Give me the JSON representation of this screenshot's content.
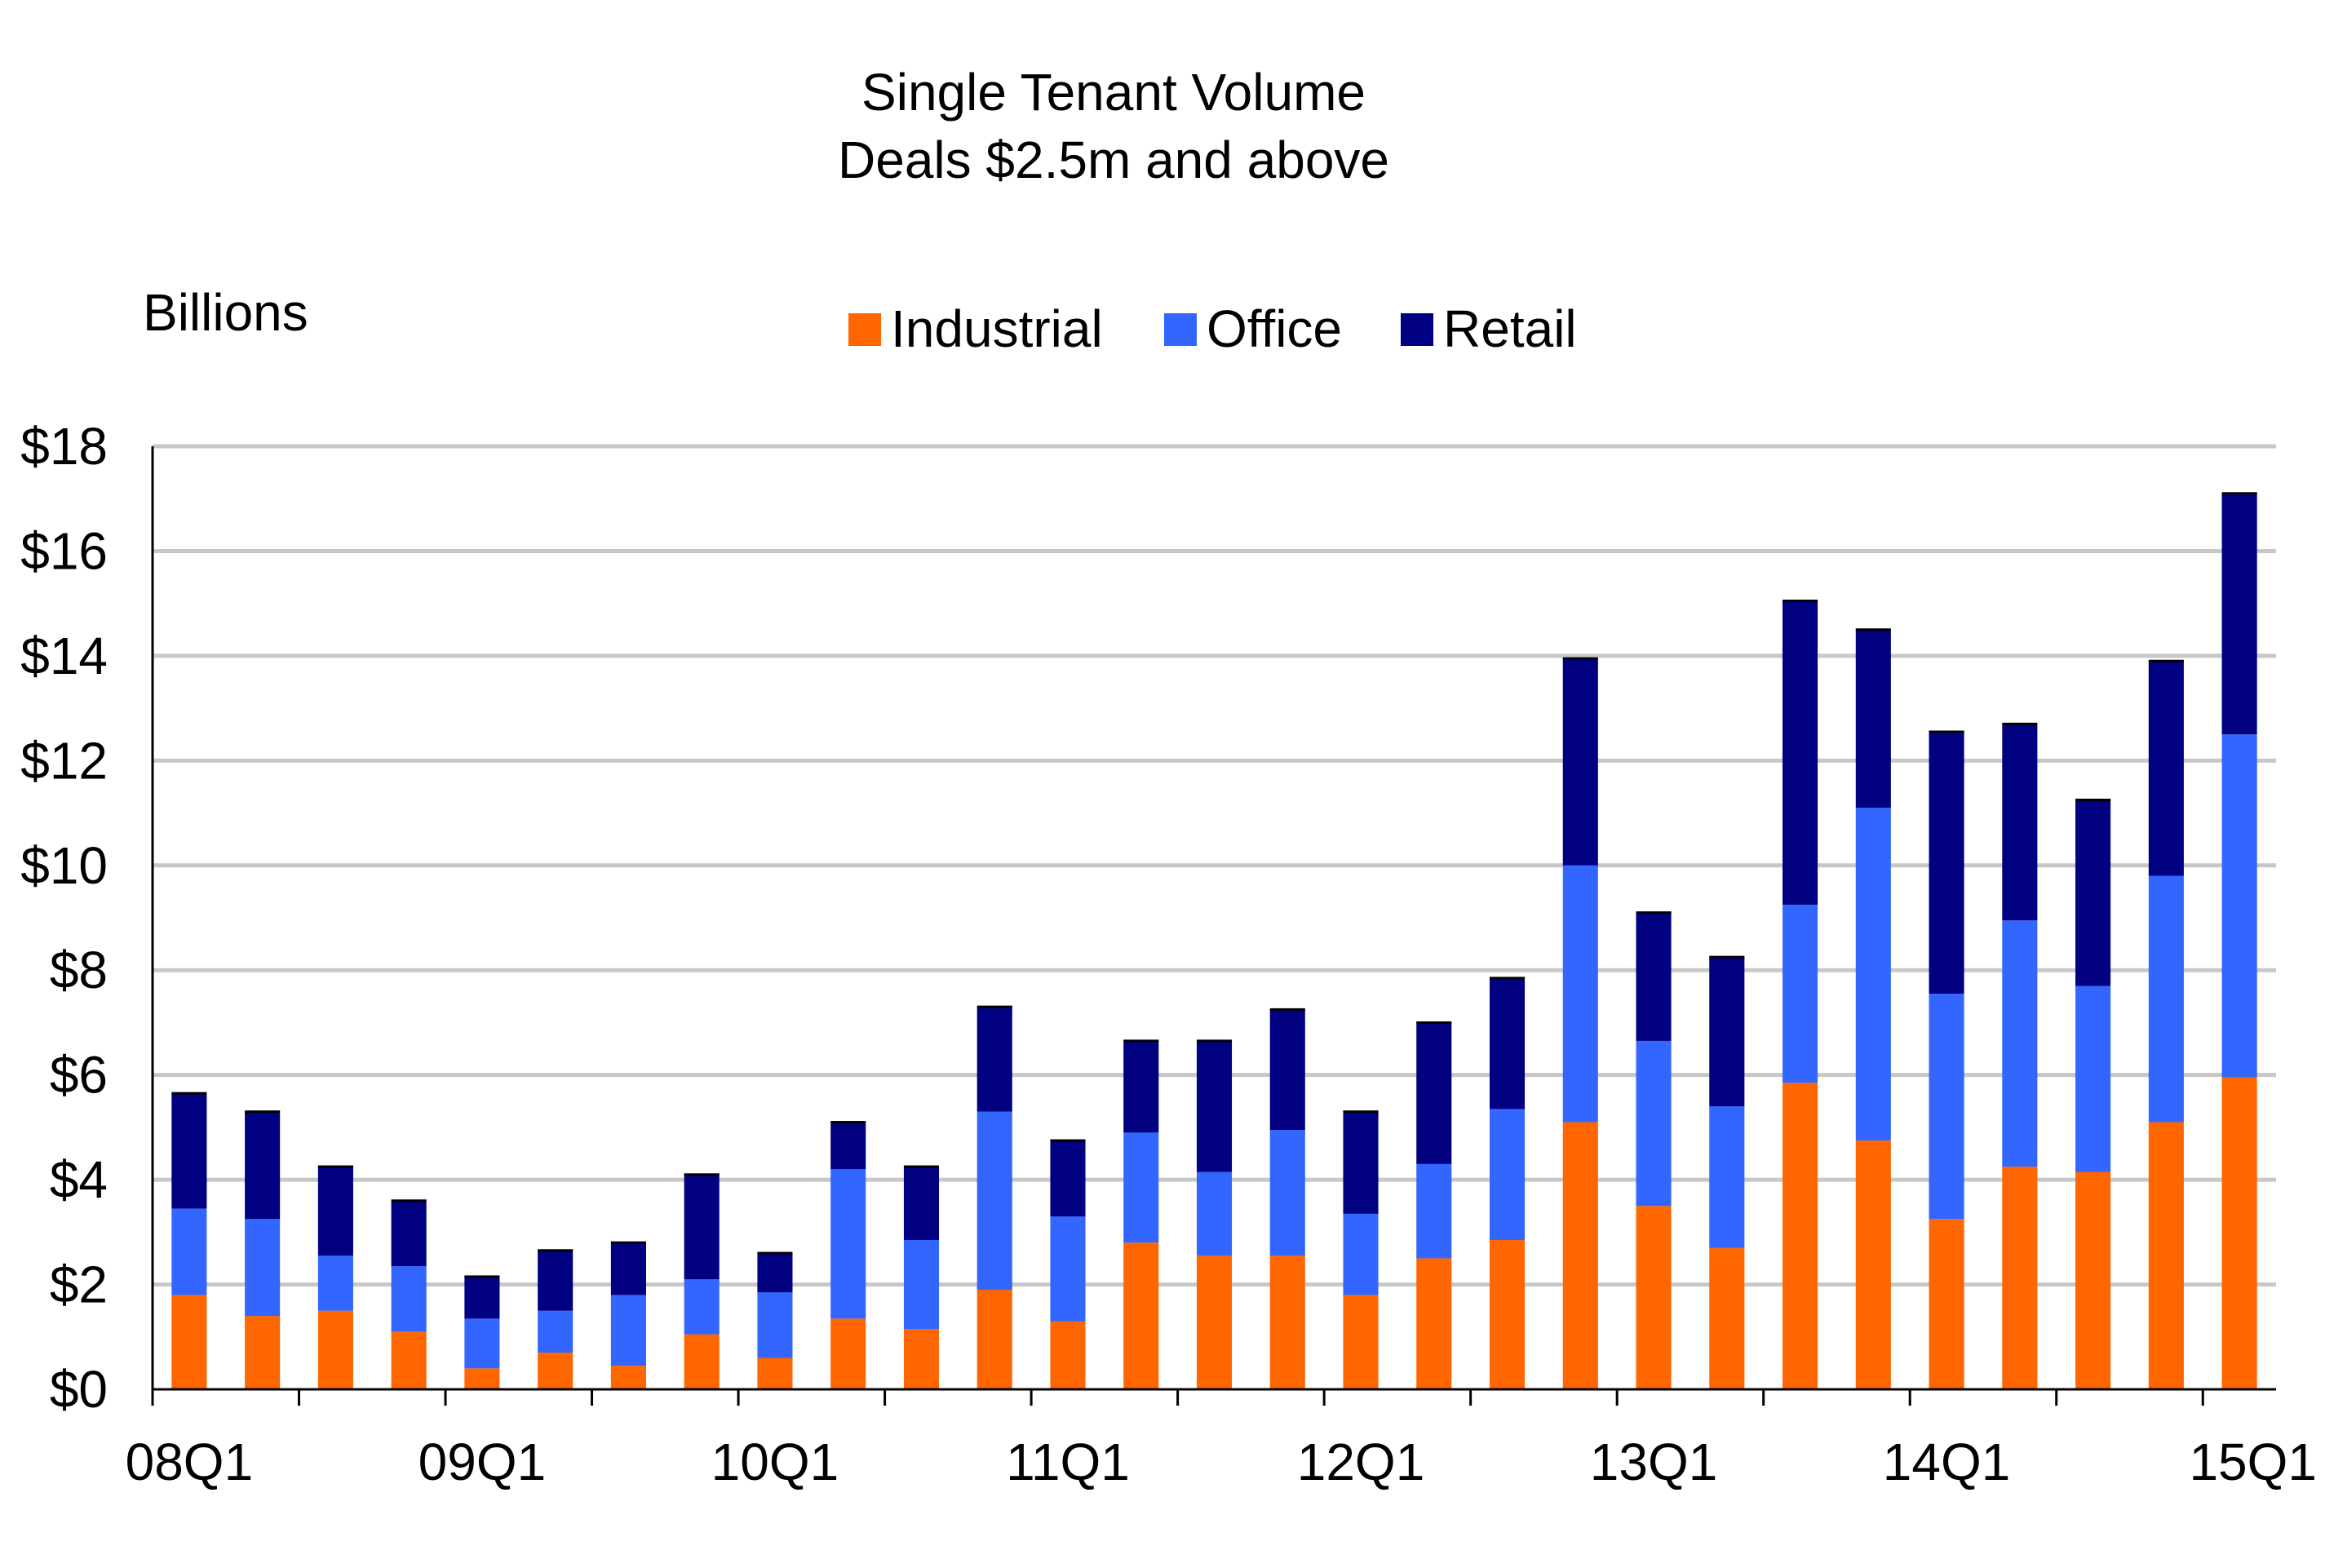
{
  "chart_data": {
    "type": "bar",
    "stacked": true,
    "title": "Single Tenant Volume",
    "subtitle": "Deals $2.5m and above",
    "unit_label": "Billions",
    "xlabel": "",
    "ylabel": "",
    "ylim": [
      0,
      18
    ],
    "y_ticks": [
      0,
      2,
      4,
      6,
      8,
      10,
      12,
      14,
      16,
      18
    ],
    "y_tick_labels": [
      "$0",
      "$2",
      "$4",
      "$6",
      "$8",
      "$10",
      "$12",
      "$14",
      "$16",
      "$18"
    ],
    "grid": true,
    "legend_position": "top-center",
    "categories": [
      "08Q1",
      "08Q2",
      "08Q3",
      "08Q4",
      "09Q1",
      "09Q2",
      "09Q3",
      "09Q4",
      "10Q1",
      "10Q2",
      "10Q3",
      "10Q4",
      "11Q1",
      "11Q2",
      "11Q3",
      "11Q4",
      "12Q1",
      "12Q2",
      "12Q3",
      "12Q4",
      "13Q1",
      "13Q2",
      "13Q3",
      "13Q4",
      "14Q1",
      "14Q2",
      "14Q3",
      "14Q4",
      "15Q1"
    ],
    "x_tick_labels": [
      {
        "index": 0,
        "label": "08Q1"
      },
      {
        "index": 4,
        "label": "09Q1"
      },
      {
        "index": 8,
        "label": "10Q1"
      },
      {
        "index": 12,
        "label": "11Q1"
      },
      {
        "index": 16,
        "label": "12Q1"
      },
      {
        "index": 20,
        "label": "13Q1"
      },
      {
        "index": 24,
        "label": "14Q1"
      },
      {
        "index": 28,
        "label": "15Q1"
      }
    ],
    "series": [
      {
        "name": "Industrial",
        "color": "#ff6600",
        "values": [
          1.8,
          1.4,
          1.5,
          1.1,
          0.4,
          0.7,
          0.45,
          1.05,
          0.6,
          1.35,
          1.15,
          1.9,
          1.3,
          2.8,
          2.55,
          2.55,
          1.8,
          2.5,
          2.85,
          5.1,
          3.5,
          2.7,
          5.85,
          4.75,
          3.25,
          4.25,
          4.15,
          5.1,
          5.95
        ]
      },
      {
        "name": "Office",
        "color": "#3366ff",
        "values": [
          1.65,
          1.85,
          1.05,
          1.25,
          0.95,
          0.8,
          1.35,
          1.05,
          1.25,
          2.85,
          1.7,
          3.4,
          2.0,
          2.1,
          1.6,
          2.4,
          1.55,
          1.8,
          2.5,
          4.9,
          3.15,
          2.7,
          3.4,
          6.35,
          4.3,
          4.7,
          3.55,
          4.7,
          6.55
        ]
      },
      {
        "name": "Retail",
        "color": "#000080",
        "values": [
          2.2,
          2.05,
          1.7,
          1.25,
          0.8,
          1.15,
          1.0,
          2.0,
          0.75,
          0.9,
          1.4,
          2.0,
          1.45,
          1.75,
          2.5,
          2.3,
          1.95,
          2.7,
          2.5,
          3.95,
          2.45,
          2.85,
          5.8,
          3.4,
          5.0,
          3.75,
          3.55,
          4.1,
          4.6
        ]
      }
    ]
  }
}
